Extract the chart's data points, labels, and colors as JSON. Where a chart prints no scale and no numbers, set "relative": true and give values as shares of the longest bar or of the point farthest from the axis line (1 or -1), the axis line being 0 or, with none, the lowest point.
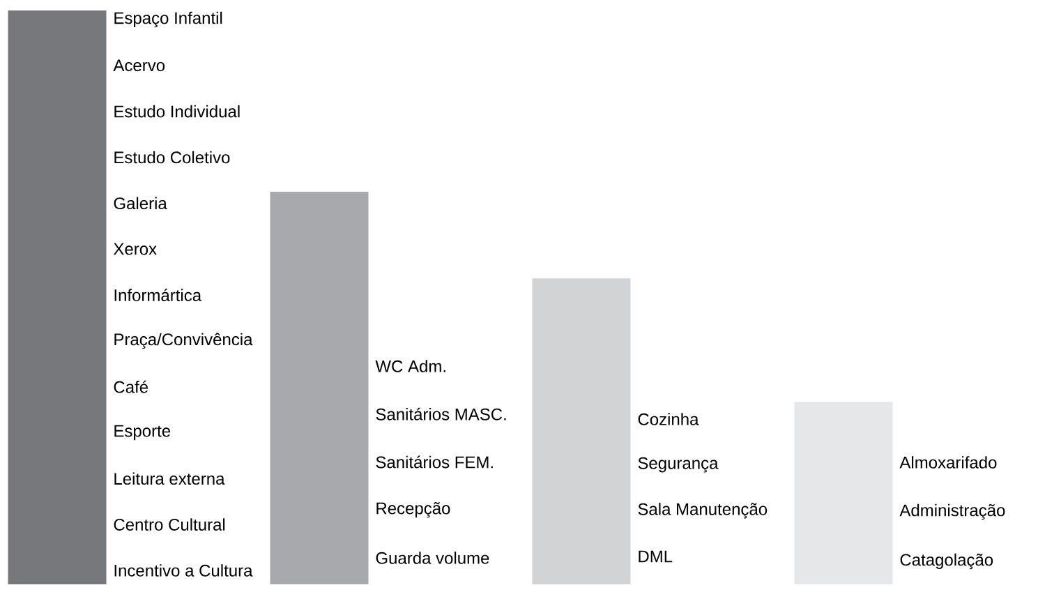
{
  "chart_data": {
    "type": "bar",
    "relative": true,
    "categories": [
      null,
      null,
      null,
      null
    ],
    "values": [
      1,
      0.684,
      0.533,
      0.318
    ],
    "colors": [
      "#77787b",
      "#a7a9ac",
      "#d1d3d4",
      "#e6e7e8"
    ],
    "annotations": [
      "Espaço Infantil",
      "Acervo",
      "Estudo Individual",
      "Estudo Coletivo",
      "Galeria",
      "Xerox",
      "Informártica",
      "Praça/Convivência",
      "Café",
      "Esporte",
      "Leitura externa",
      "Centro Cultural",
      "Incentivo a Cultura",
      "WC Adm.",
      "Sanitários MASC.",
      "Sanitários FEM.",
      "Recepção",
      "Guarda volume",
      "Cozinha",
      "Segurança",
      "Sala Manutenção",
      "DML",
      "Almoxarifado",
      "Administração",
      "Catagolação"
    ]
  }
}
